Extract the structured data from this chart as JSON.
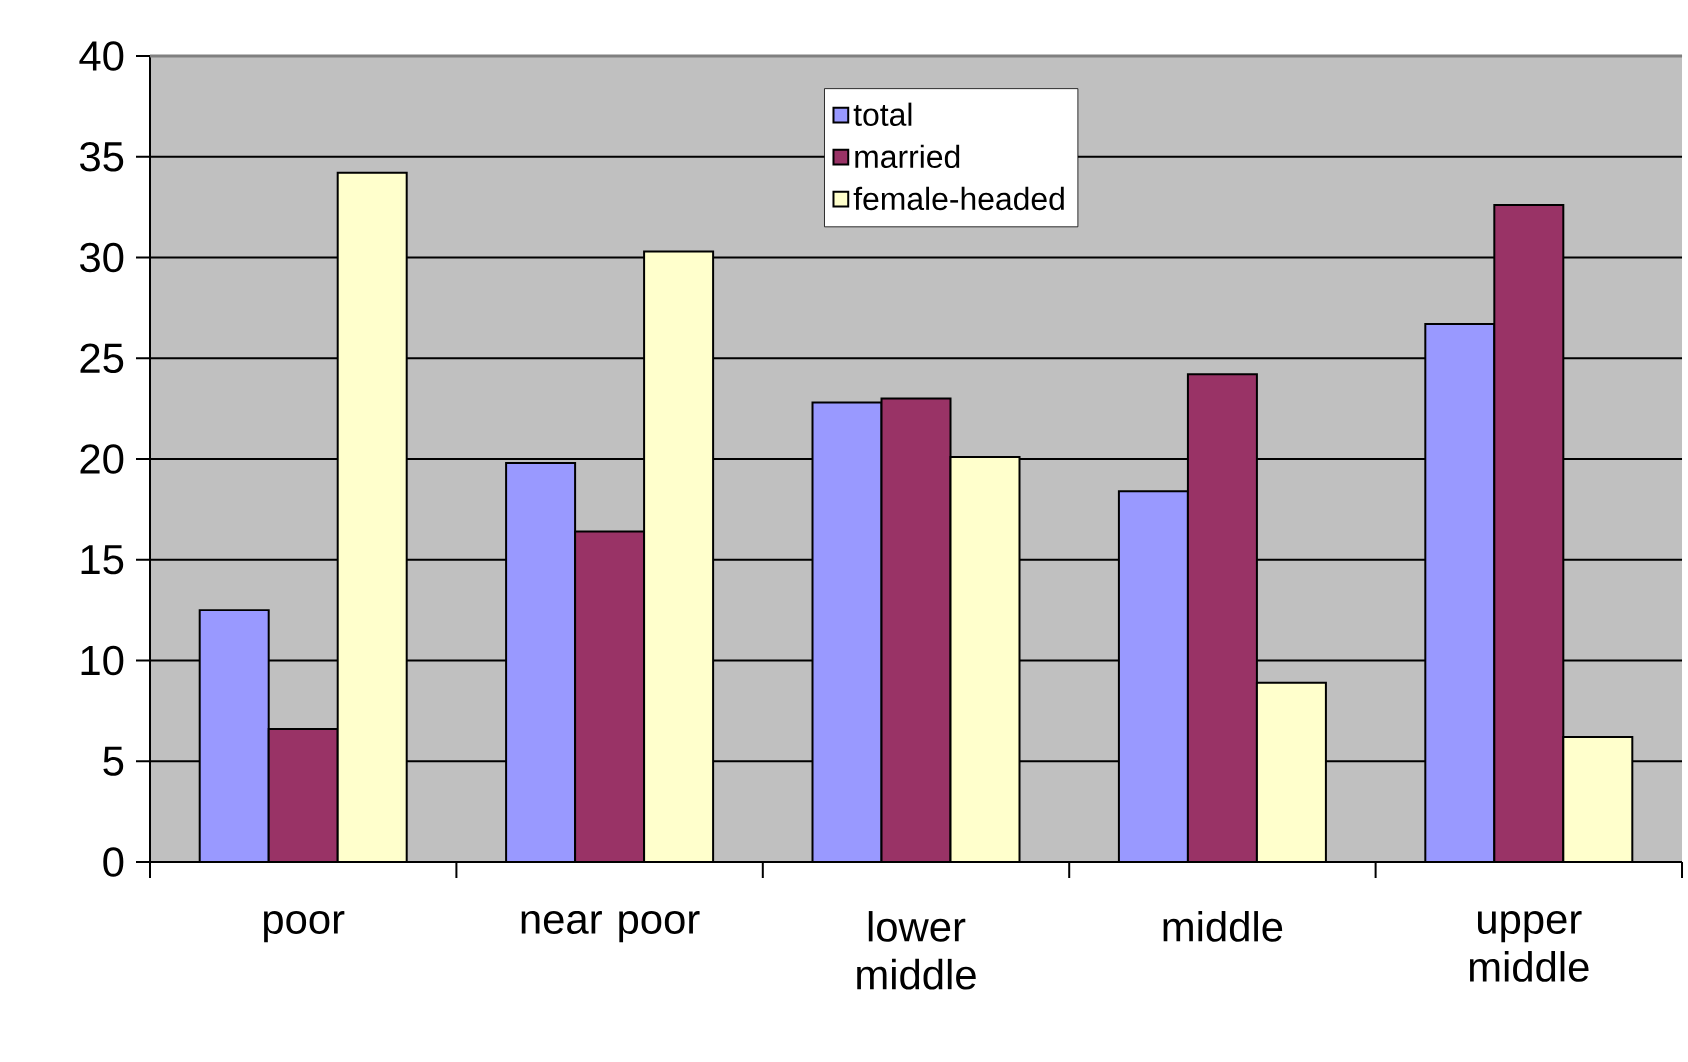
{
  "chart_data": {
    "type": "bar",
    "categories": [
      "poor",
      "near poor",
      "lower middle",
      "middle",
      "upper middle"
    ],
    "series": [
      {
        "name": "total",
        "color": "#9999ff",
        "values": [
          12.5,
          19.8,
          22.8,
          18.4,
          26.7
        ]
      },
      {
        "name": "married",
        "color": "#993366",
        "values": [
          6.6,
          16.4,
          23.0,
          24.2,
          32.6
        ]
      },
      {
        "name": "female-headed",
        "color": "#ffffcc",
        "values": [
          34.2,
          30.3,
          20.1,
          8.9,
          6.2
        ]
      }
    ],
    "ylim": [
      0,
      40
    ],
    "yticks": [
      0,
      5,
      10,
      15,
      20,
      25,
      30,
      35,
      40
    ],
    "grid": "y",
    "legend": "top"
  }
}
